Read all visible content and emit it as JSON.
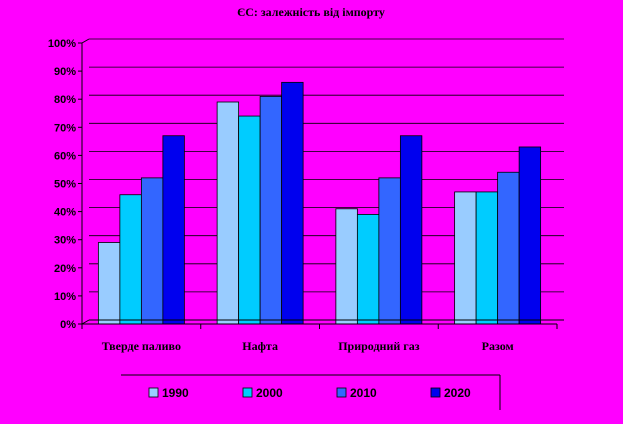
{
  "chart_data": {
    "type": "bar",
    "title": "ЄС: залежність від імпорту",
    "xlabel": "",
    "ylabel": "",
    "ylim": [
      0,
      100
    ],
    "yticks": [
      0,
      10,
      20,
      30,
      40,
      50,
      60,
      70,
      80,
      90,
      100
    ],
    "ytick_suffix": "%",
    "grid": true,
    "legend_position": "bottom",
    "categories": [
      "Тверде паливо",
      "Нафта",
      "Природний газ",
      "Разом"
    ],
    "series": [
      {
        "name": "1990",
        "color": "#99ccff",
        "values": [
          29,
          79,
          41,
          47
        ]
      },
      {
        "name": "2000",
        "color": "#00ccff",
        "values": [
          46,
          74,
          39,
          47
        ]
      },
      {
        "name": "2010",
        "color": "#3366ff",
        "values": [
          52,
          81,
          52,
          54
        ]
      },
      {
        "name": "2020",
        "color": "#0000ee",
        "values": [
          67,
          86,
          67,
          63
        ]
      }
    ]
  }
}
